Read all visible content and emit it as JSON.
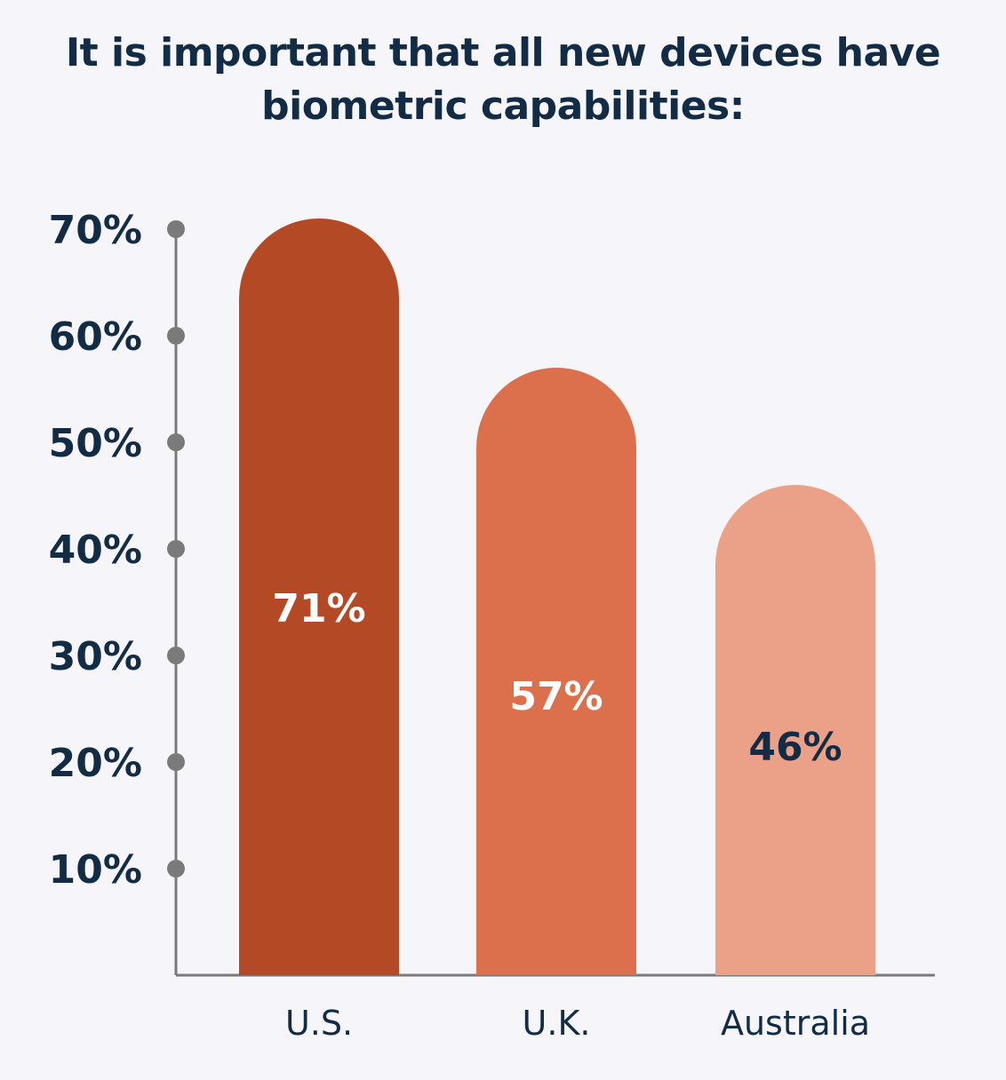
{
  "chart_data": {
    "type": "bar",
    "title": "It is important that all new devices have biometric capabilities:",
    "categories": [
      "U.S.",
      "U.K.",
      "Australia"
    ],
    "values": [
      71,
      57,
      46
    ],
    "data_labels": [
      "71%",
      "57%",
      "46%"
    ],
    "bar_colors": [
      "#b34a25",
      "#dc704c",
      "#eaa188"
    ],
    "label_colors": [
      "#ffffff",
      "#ffffff",
      "#132c45"
    ],
    "yticks": [
      10,
      20,
      30,
      40,
      50,
      60,
      70
    ],
    "ytick_labels": [
      "10%",
      "20%",
      "30%",
      "40%",
      "50%",
      "60%",
      "70%"
    ],
    "ylim": [
      0,
      70
    ],
    "grid": false,
    "axis_color": "#7a7a7a",
    "text_color": "#132c45"
  }
}
